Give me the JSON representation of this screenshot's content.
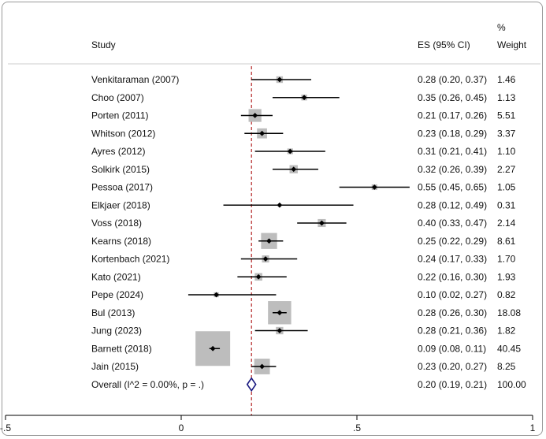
{
  "chart_data": {
    "type": "forest",
    "headers": {
      "study": "Study",
      "es": "ES (95% CI)",
      "weight_line1": "%",
      "weight_line2": "Weight"
    },
    "studies": [
      {
        "label": "Venkitaraman (2007)",
        "es": 0.28,
        "lo": 0.2,
        "hi": 0.37,
        "es_text": "0.28 (0.20, 0.37)",
        "weight": 1.46,
        "weight_text": "1.46"
      },
      {
        "label": "Choo (2007)",
        "es": 0.35,
        "lo": 0.26,
        "hi": 0.45,
        "es_text": "0.35 (0.26, 0.45)",
        "weight": 1.13,
        "weight_text": "1.13"
      },
      {
        "label": "Porten (2011)",
        "es": 0.21,
        "lo": 0.17,
        "hi": 0.26,
        "es_text": "0.21 (0.17, 0.26)",
        "weight": 5.51,
        "weight_text": "5.51"
      },
      {
        "label": "Whitson (2012)",
        "es": 0.23,
        "lo": 0.18,
        "hi": 0.29,
        "es_text": "0.23 (0.18, 0.29)",
        "weight": 3.37,
        "weight_text": "3.37"
      },
      {
        "label": "Ayres (2012)",
        "es": 0.31,
        "lo": 0.21,
        "hi": 0.41,
        "es_text": "0.31 (0.21, 0.41)",
        "weight": 1.1,
        "weight_text": "1.10"
      },
      {
        "label": "Solkirk (2015)",
        "es": 0.32,
        "lo": 0.26,
        "hi": 0.39,
        "es_text": "0.32 (0.26, 0.39)",
        "weight": 2.27,
        "weight_text": "2.27"
      },
      {
        "label": "Pessoa (2017)",
        "es": 0.55,
        "lo": 0.45,
        "hi": 0.65,
        "es_text": "0.55 (0.45, 0.65)",
        "weight": 1.05,
        "weight_text": "1.05"
      },
      {
        "label": "Elkjaer (2018)",
        "es": 0.28,
        "lo": 0.12,
        "hi": 0.49,
        "es_text": "0.28 (0.12, 0.49)",
        "weight": 0.31,
        "weight_text": "0.31"
      },
      {
        "label": "Voss (2018)",
        "es": 0.4,
        "lo": 0.33,
        "hi": 0.47,
        "es_text": "0.40 (0.33, 0.47)",
        "weight": 2.14,
        "weight_text": "2.14"
      },
      {
        "label": "Kearns (2018)",
        "es": 0.25,
        "lo": 0.22,
        "hi": 0.29,
        "es_text": "0.25 (0.22, 0.29)",
        "weight": 8.61,
        "weight_text": "8.61"
      },
      {
        "label": "Kortenbach (2021)",
        "es": 0.24,
        "lo": 0.17,
        "hi": 0.33,
        "es_text": "0.24 (0.17, 0.33)",
        "weight": 1.7,
        "weight_text": "1.70"
      },
      {
        "label": "Kato (2021)",
        "es": 0.22,
        "lo": 0.16,
        "hi": 0.3,
        "es_text": "0.22 (0.16, 0.30)",
        "weight": 1.93,
        "weight_text": "1.93"
      },
      {
        "label": "Pepe (2024)",
        "es": 0.1,
        "lo": 0.02,
        "hi": 0.27,
        "es_text": "0.10 (0.02, 0.27)",
        "weight": 0.82,
        "weight_text": "0.82"
      },
      {
        "label": "Bul (2013)",
        "es": 0.28,
        "lo": 0.26,
        "hi": 0.3,
        "es_text": "0.28 (0.26, 0.30)",
        "weight": 18.08,
        "weight_text": "18.08"
      },
      {
        "label": "Jung (2023)",
        "es": 0.28,
        "lo": 0.21,
        "hi": 0.36,
        "es_text": "0.28 (0.21, 0.36)",
        "weight": 1.82,
        "weight_text": "1.82"
      },
      {
        "label": "Barnett (2018)",
        "es": 0.09,
        "lo": 0.08,
        "hi": 0.11,
        "es_text": "0.09 (0.08, 0.11)",
        "weight": 40.45,
        "weight_text": "40.45"
      },
      {
        "label": "Jain (2015)",
        "es": 0.23,
        "lo": 0.2,
        "hi": 0.27,
        "es_text": "0.23 (0.20, 0.27)",
        "weight": 8.25,
        "weight_text": "8.25"
      }
    ],
    "overall": {
      "label": "Overall  (I^2 = 0.00%, p = .)",
      "es": 0.2,
      "lo": 0.19,
      "hi": 0.21,
      "es_text": "0.20 (0.19, 0.21)",
      "weight_text": "100.00"
    },
    "xaxis": {
      "min": -0.5,
      "max": 1.0,
      "ticks": [
        -0.5,
        0,
        0.5,
        1
      ],
      "tick_labels": [
        "-.5",
        "0",
        ".5",
        "1"
      ]
    },
    "colors": {
      "box": "#bdbdbd",
      "point": "#000000",
      "ci_line": "#000000",
      "ref_line": "#b22222",
      "diamond": "#1a1a80",
      "header_rule": "#cccccc"
    }
  }
}
